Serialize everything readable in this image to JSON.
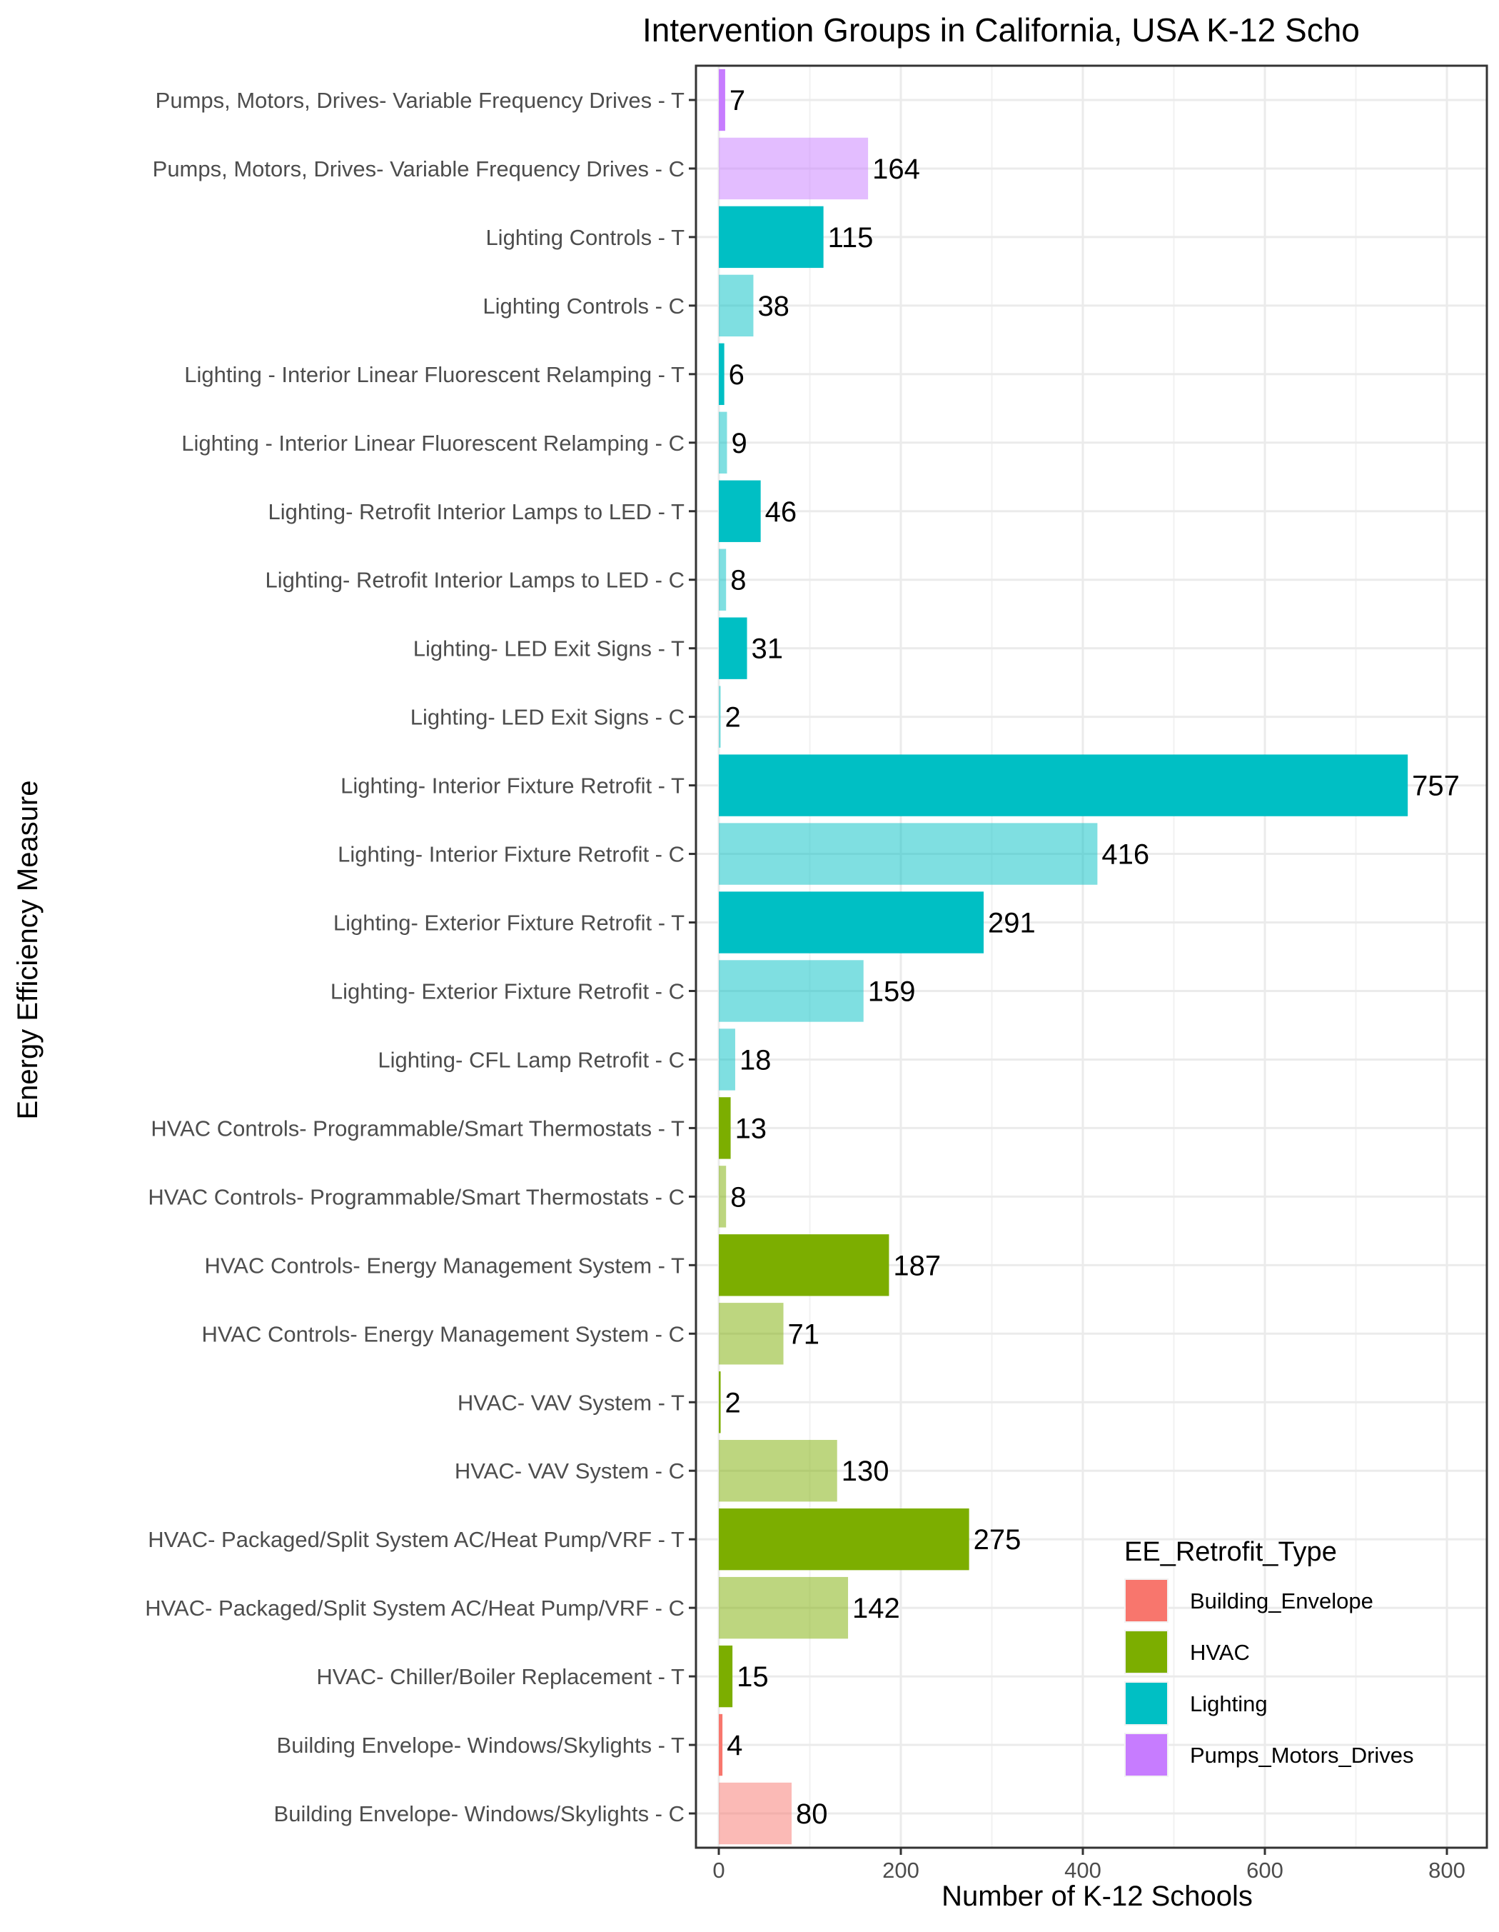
{
  "chart_data": {
    "type": "bar",
    "orientation": "horizontal",
    "title": "Intervention Groups in California, USA K-12 Scho",
    "xlabel": "Number of K-12 Schools",
    "ylabel": "Energy Efficiency Measure",
    "xlim": [
      0,
      820
    ],
    "x_ticks": [
      "0",
      "200",
      "400",
      "600",
      "800"
    ],
    "grid": true,
    "legend": {
      "title": "EE_Retrofit_Type",
      "placement": "bottom-right",
      "entries": [
        {
          "name": "Building_Envelope",
          "color": "#F8766D"
        },
        {
          "name": "HVAC",
          "color": "#7CAE00"
        },
        {
          "name": "Lighting",
          "color": "#00BFC4"
        },
        {
          "name": "Pumps_Motors_Drives",
          "color": "#C77CFF"
        }
      ]
    },
    "bars": [
      {
        "category": "Building Envelope- Windows/Skylights - C",
        "value": 80,
        "type": "Building_Envelope",
        "group": "C"
      },
      {
        "category": "Building Envelope- Windows/Skylights - T",
        "value": 4,
        "type": "Building_Envelope",
        "group": "T"
      },
      {
        "category": "HVAC- Chiller/Boiler Replacement - T",
        "value": 15,
        "type": "HVAC",
        "group": "T"
      },
      {
        "category": "HVAC- Packaged/Split System AC/Heat Pump/VRF - C",
        "value": 142,
        "type": "HVAC",
        "group": "C"
      },
      {
        "category": "HVAC- Packaged/Split System AC/Heat Pump/VRF - T",
        "value": 275,
        "type": "HVAC",
        "group": "T"
      },
      {
        "category": "HVAC- VAV System - C",
        "value": 130,
        "type": "HVAC",
        "group": "C"
      },
      {
        "category": "HVAC- VAV System - T",
        "value": 2,
        "type": "HVAC",
        "group": "T"
      },
      {
        "category": "HVAC Controls- Energy Management System - C",
        "value": 71,
        "type": "HVAC",
        "group": "C"
      },
      {
        "category": "HVAC Controls- Energy Management System - T",
        "value": 187,
        "type": "HVAC",
        "group": "T"
      },
      {
        "category": "HVAC Controls- Programmable/Smart Thermostats - C",
        "value": 8,
        "type": "HVAC",
        "group": "C"
      },
      {
        "category": "HVAC Controls- Programmable/Smart Thermostats - T",
        "value": 13,
        "type": "HVAC",
        "group": "T"
      },
      {
        "category": "Lighting- CFL Lamp Retrofit - C",
        "value": 18,
        "type": "Lighting",
        "group": "C"
      },
      {
        "category": "Lighting- Exterior Fixture Retrofit - C",
        "value": 159,
        "type": "Lighting",
        "group": "C"
      },
      {
        "category": "Lighting- Exterior Fixture Retrofit - T",
        "value": 291,
        "type": "Lighting",
        "group": "T"
      },
      {
        "category": "Lighting- Interior Fixture Retrofit - C",
        "value": 416,
        "type": "Lighting",
        "group": "C"
      },
      {
        "category": "Lighting- Interior Fixture Retrofit - T",
        "value": 757,
        "type": "Lighting",
        "group": "T"
      },
      {
        "category": "Lighting- LED Exit Signs - C",
        "value": 2,
        "type": "Lighting",
        "group": "C"
      },
      {
        "category": "Lighting- LED Exit Signs - T",
        "value": 31,
        "type": "Lighting",
        "group": "T"
      },
      {
        "category": "Lighting- Retrofit Interior Lamps to LED - C",
        "value": 8,
        "type": "Lighting",
        "group": "C"
      },
      {
        "category": "Lighting- Retrofit Interior Lamps to LED - T",
        "value": 46,
        "type": "Lighting",
        "group": "T"
      },
      {
        "category": "Lighting - Interior Linear Fluorescent  Relamping - C",
        "value": 9,
        "type": "Lighting",
        "group": "C"
      },
      {
        "category": "Lighting - Interior Linear Fluorescent  Relamping - T",
        "value": 6,
        "type": "Lighting",
        "group": "T"
      },
      {
        "category": "Lighting Controls - C",
        "value": 38,
        "type": "Lighting",
        "group": "C"
      },
      {
        "category": "Lighting Controls - T",
        "value": 115,
        "type": "Lighting",
        "group": "T"
      },
      {
        "category": "Pumps, Motors, Drives- Variable Frequency Drives - C",
        "value": 164,
        "type": "Pumps_Motors_Drives",
        "group": "C"
      },
      {
        "category": "Pumps, Motors, Drives- Variable Frequency Drives - T",
        "value": 7,
        "type": "Pumps_Motors_Drives",
        "group": "T"
      }
    ],
    "group_opacity": {
      "C": 0.5,
      "T": 1.0
    }
  }
}
